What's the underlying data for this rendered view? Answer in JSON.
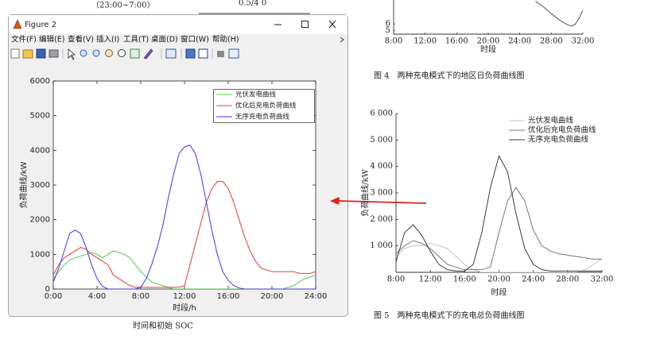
{
  "page": {
    "top_note": "（23:00~7:00）",
    "top_value": "0.5/4 0",
    "bottom_note": "时间和初始 SOC"
  },
  "window": {
    "title": "Figure 2",
    "menu": [
      "文件(F)",
      "编辑(E)",
      "查看(V)",
      "插入(I)",
      "工具(T)",
      "桌面(D)",
      "窗口(W)",
      "帮助(H)"
    ]
  },
  "paper": {
    "fig4_caption": "图 4　两种充电模式下的地区日负荷曲线图",
    "fig5_caption": "图 5　两种充电模式下的充电总负荷曲线图"
  },
  "chart_data": [
    {
      "type": "line",
      "x_label": "时段/h",
      "y_label": "负荷曲线/kW",
      "legend": "upper right",
      "grid": false,
      "xlim": [
        0,
        24
      ],
      "ylim": [
        0,
        6000
      ],
      "xticks": [
        {
          "value": 0,
          "label": "0:00"
        },
        {
          "value": 4,
          "label": "4:00"
        },
        {
          "value": 8,
          "label": "8:00"
        },
        {
          "value": 12,
          "label": "12:00"
        },
        {
          "value": 16,
          "label": "16:00"
        },
        {
          "value": 20,
          "label": "20:00"
        },
        {
          "value": 24,
          "label": "24:00"
        }
      ],
      "yticks": [
        0,
        1000,
        2000,
        3000,
        4000,
        5000,
        6000
      ],
      "x": [
        0,
        0.5,
        1,
        1.5,
        2,
        2.5,
        3,
        3.5,
        4,
        4.5,
        5,
        5.5,
        6,
        6.5,
        7,
        7.5,
        8,
        8.5,
        9,
        9.5,
        10,
        10.5,
        11,
        11.5,
        12,
        12.5,
        13,
        13.5,
        14,
        14.5,
        15,
        15.5,
        16,
        16.5,
        17,
        17.5,
        18,
        18.5,
        19,
        19.5,
        20,
        20.5,
        21,
        21.5,
        22,
        22.5,
        23,
        23.5,
        24
      ],
      "series": [
        {
          "name": "光伏发电曲线",
          "color": "#4ccf4c",
          "values": [
            300,
            500,
            700,
            850,
            900,
            950,
            1000,
            1050,
            1000,
            900,
            1000,
            1100,
            1050,
            1000,
            900,
            700,
            500,
            350,
            200,
            150,
            100,
            50,
            0,
            0,
            0,
            0,
            0,
            0,
            0,
            0,
            0,
            0,
            0,
            0,
            0,
            0,
            0,
            0,
            0,
            0,
            0,
            0,
            0,
            50,
            100,
            200,
            300,
            350,
            400
          ]
        },
        {
          "name": "优化后充电负荷曲线",
          "color": "#e83a3a",
          "values": [
            400,
            700,
            900,
            1000,
            1100,
            1200,
            1150,
            1000,
            900,
            800,
            700,
            400,
            300,
            200,
            100,
            50,
            50,
            50,
            50,
            50,
            50,
            50,
            50,
            50,
            100,
            700,
            1300,
            1900,
            2500,
            2900,
            3100,
            3100,
            2900,
            2500,
            2000,
            1500,
            1100,
            800,
            600,
            550,
            500,
            500,
            500,
            500,
            500,
            450,
            450,
            450,
            500
          ]
        },
        {
          "name": "无序充电负荷曲线",
          "color": "#3b3bf0",
          "values": [
            200,
            600,
            1100,
            1600,
            1700,
            1600,
            1200,
            700,
            300,
            80,
            0,
            0,
            0,
            0,
            0,
            0,
            50,
            300,
            700,
            1200,
            1800,
            2600,
            3300,
            3900,
            4100,
            4150,
            3900,
            3300,
            2500,
            1700,
            1000,
            500,
            250,
            100,
            30,
            0,
            0,
            0,
            0,
            0,
            0,
            0,
            0,
            0,
            0,
            0,
            0,
            0,
            0
          ]
        }
      ]
    },
    {
      "type": "line",
      "x_label": "时段",
      "xlim": [
        8,
        32
      ],
      "ylim": [
        4.5,
        9.5
      ],
      "xticks": [
        {
          "value": 8,
          "label": "8:00"
        },
        {
          "value": 12,
          "label": "12:00"
        },
        {
          "value": 16,
          "label": "16:00"
        },
        {
          "value": 20,
          "label": "20:00"
        },
        {
          "value": 24,
          "label": "24:00"
        },
        {
          "value": 28,
          "label": "28:00"
        },
        {
          "value": 32,
          "label": "32:00"
        }
      ],
      "yticks": [
        5,
        6
      ],
      "x": [
        26,
        27,
        28,
        29,
        30,
        30.5,
        31,
        31.5,
        32
      ],
      "series": [
        {
          "color": "#555555",
          "values": [
            9.3,
            8.5,
            7.5,
            6.6,
            5.9,
            5.7,
            5.9,
            6.8,
            8.0
          ]
        }
      ]
    },
    {
      "type": "line",
      "x_label": "时段",
      "y_label": "负荷曲线/kW",
      "legend": "upper right",
      "xlim": [
        8,
        32
      ],
      "ylim": [
        0,
        6000
      ],
      "xticks": [
        {
          "value": 8,
          "label": "8:00"
        },
        {
          "value": 12,
          "label": "12:00"
        },
        {
          "value": 16,
          "label": "16:00"
        },
        {
          "value": 20,
          "label": "20:00"
        },
        {
          "value": 24,
          "label": "24:00"
        },
        {
          "value": 28,
          "label": "28:00"
        },
        {
          "value": 32,
          "label": "32:00"
        }
      ],
      "yticks": [
        {
          "value": 1000,
          "label": "1 000"
        },
        {
          "value": 2000,
          "label": "2 000"
        },
        {
          "value": 3000,
          "label": "3 000"
        },
        {
          "value": 4000,
          "label": "4 000"
        },
        {
          "value": 5000,
          "label": "5 000"
        },
        {
          "value": 6000,
          "label": "6 000"
        }
      ],
      "x": [
        8,
        9,
        10,
        11,
        12,
        13,
        14,
        15,
        16,
        17,
        18,
        19,
        20,
        21,
        22,
        23,
        24,
        25,
        26,
        27,
        28,
        29,
        30,
        31,
        32
      ],
      "series": [
        {
          "name": "光伏发电曲线",
          "color": "#c4c4c4",
          "values": [
            600,
            900,
            1000,
            1000,
            1100,
            1000,
            900,
            600,
            300,
            100,
            0,
            0,
            0,
            0,
            0,
            0,
            0,
            0,
            0,
            0,
            0,
            0,
            100,
            300,
            500
          ]
        },
        {
          "name": "优化后充电负荷曲线",
          "color": "#777777",
          "values": [
            700,
            1000,
            1200,
            1100,
            900,
            600,
            300,
            200,
            100,
            100,
            100,
            200,
            1500,
            2700,
            3200,
            2700,
            1600,
            1000,
            800,
            700,
            650,
            600,
            550,
            500,
            500
          ]
        },
        {
          "name": "无序充电负荷曲线",
          "color": "#3c3c3c",
          "values": [
            400,
            1500,
            1800,
            1400,
            800,
            300,
            100,
            50,
            50,
            300,
            1500,
            3200,
            4400,
            3800,
            2200,
            900,
            300,
            100,
            50,
            50,
            50,
            50,
            50,
            50,
            50
          ]
        }
      ]
    }
  ]
}
